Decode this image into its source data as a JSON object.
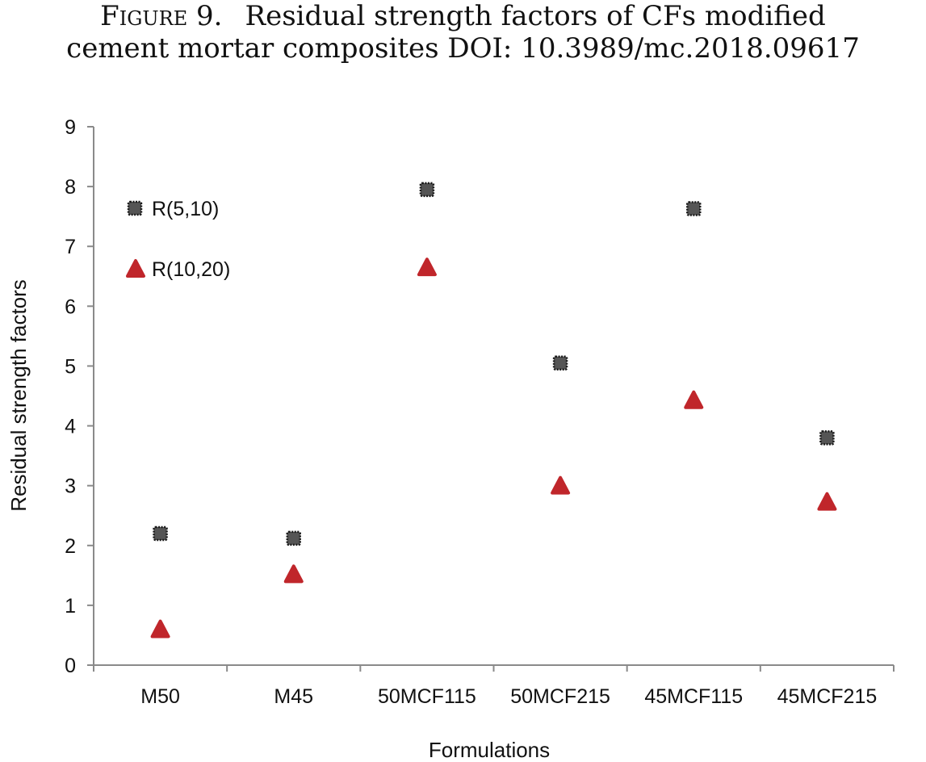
{
  "caption": {
    "figure_label": "Figure 9.",
    "line1_text": "Residual strength factors of CFs modified",
    "line2_text": "cement mortar composites DOI: 10.3989/mc.2018.09617"
  },
  "chart_data": {
    "type": "scatter",
    "title": "",
    "xlabel": "Formulations",
    "ylabel": "Residual strength factors",
    "categories": [
      "M50",
      "M45",
      "50MCF115",
      "50MCF215",
      "45MCF115",
      "45MCF215"
    ],
    "ylim": [
      0,
      9
    ],
    "yticks": [
      "0",
      "1",
      "2",
      "3",
      "4",
      "5",
      "6",
      "7",
      "8",
      "9"
    ],
    "grid": false,
    "legend_position": "top-left inside plot",
    "series": [
      {
        "name": "R(5,10)",
        "marker": "square",
        "color": "#555555",
        "values": [
          2.2,
          2.12,
          7.95,
          5.05,
          7.63,
          3.8
        ]
      },
      {
        "name": "R(10,20)",
        "marker": "triangle",
        "color": "#c0262b",
        "values": [
          0.6,
          1.52,
          6.65,
          3.0,
          4.43,
          2.73
        ]
      }
    ]
  }
}
